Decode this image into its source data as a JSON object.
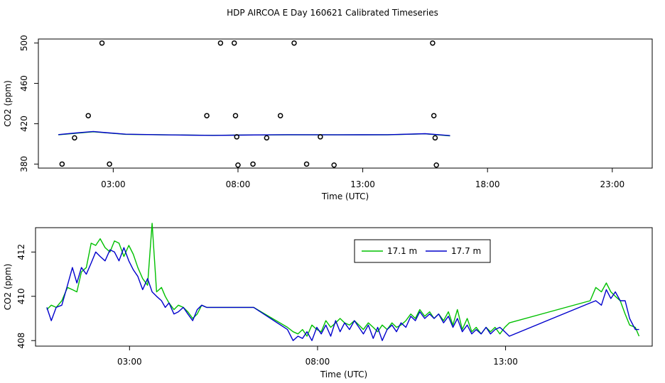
{
  "title": "HDP AIRCOA E  Day 160621  Calibrated Timeseries",
  "colors": {
    "green": "#00c000",
    "blue": "#0000cc",
    "black": "#000000"
  },
  "chart_data": [
    {
      "type": "scatter",
      "xlabel": "Time (UTC)",
      "ylabel": "CO2 (ppm)",
      "xlim": [
        0.0,
        24.6
      ],
      "ylim": [
        376,
        504
      ],
      "xticks": [
        3,
        8,
        13,
        18,
        23
      ],
      "xticklabels": [
        "03:00",
        "08:00",
        "13:00",
        "18:00",
        "23:00"
      ],
      "yticks": [
        380,
        420,
        460,
        500
      ],
      "yticklabels": [
        "380",
        "420",
        "460",
        "500"
      ],
      "points": [
        {
          "x": 0.95,
          "y": 380
        },
        {
          "x": 1.45,
          "y": 406
        },
        {
          "x": 2.0,
          "y": 428
        },
        {
          "x": 2.55,
          "y": 500
        },
        {
          "x": 2.85,
          "y": 380
        },
        {
          "x": 6.75,
          "y": 428
        },
        {
          "x": 7.3,
          "y": 500
        },
        {
          "x": 7.85,
          "y": 500
        },
        {
          "x": 7.9,
          "y": 428
        },
        {
          "x": 7.95,
          "y": 407
        },
        {
          "x": 8.0,
          "y": 379
        },
        {
          "x": 8.6,
          "y": 380
        },
        {
          "x": 9.15,
          "y": 406
        },
        {
          "x": 9.7,
          "y": 428
        },
        {
          "x": 10.25,
          "y": 500
        },
        {
          "x": 10.75,
          "y": 380
        },
        {
          "x": 11.3,
          "y": 407
        },
        {
          "x": 11.85,
          "y": 379
        },
        {
          "x": 15.8,
          "y": 500
        },
        {
          "x": 15.85,
          "y": 428
        },
        {
          "x": 15.9,
          "y": 406
        },
        {
          "x": 15.95,
          "y": 379
        }
      ],
      "series": [
        {
          "color": "green",
          "x": [
            0.8,
            1.5,
            2.2,
            2.7,
            3.5,
            5,
            7,
            8,
            10,
            12,
            14,
            15.5,
            16.5
          ],
          "y": [
            409,
            410.5,
            412,
            411,
            409.5,
            409,
            408.5,
            408.8,
            409,
            409,
            409,
            410,
            408
          ]
        },
        {
          "color": "blue",
          "x": [
            0.8,
            1.5,
            2.2,
            2.7,
            3.5,
            5,
            7,
            8,
            10,
            12,
            14,
            15.5,
            16.5
          ],
          "y": [
            409.2,
            410.8,
            412.3,
            411.2,
            409.6,
            409,
            408.4,
            408.7,
            409.1,
            409,
            409.1,
            410.1,
            408.2
          ]
        }
      ]
    },
    {
      "type": "line",
      "xlabel": "Time (UTC)",
      "ylabel": "CO2 (ppm)",
      "xlim": [
        0.5,
        16.9
      ],
      "ylim": [
        407.75,
        413.1
      ],
      "xticks": [
        3,
        8,
        13
      ],
      "xticklabels": [
        "03:00",
        "08:00",
        "13:00"
      ],
      "yticks": [
        408,
        410,
        412
      ],
      "yticklabels": [
        "408",
        "410",
        "412"
      ],
      "legend": {
        "placement": "top-right",
        "labels": [
          "17.1 m",
          "17.7 m"
        ]
      },
      "series": [
        {
          "name": "17.1 m",
          "color": "green",
          "x": [
            0.8,
            0.92,
            1.05,
            1.2,
            1.35,
            1.48,
            1.6,
            1.72,
            1.85,
            1.98,
            2.1,
            2.22,
            2.35,
            2.48,
            2.6,
            2.72,
            2.85,
            2.98,
            3.1,
            3.22,
            3.35,
            3.48,
            3.6,
            3.72,
            3.85,
            3.95,
            4.05,
            4.18,
            4.3,
            4.43,
            4.55,
            4.68,
            4.8,
            4.92,
            5.05,
            5.18,
            5.3,
            5.43,
            5.55,
            5.68,
            5.8,
            5.93,
            6.05,
            6.18,
            6.3,
            7.2,
            7.35,
            7.48,
            7.6,
            7.72,
            7.85,
            7.98,
            8.1,
            8.22,
            8.35,
            8.48,
            8.6,
            8.72,
            8.85,
            8.98,
            9.1,
            9.22,
            9.35,
            9.48,
            9.6,
            9.72,
            9.85,
            9.98,
            10.1,
            10.22,
            10.35,
            10.48,
            10.6,
            10.72,
            10.85,
            10.98,
            11.1,
            11.22,
            11.35,
            11.48,
            11.6,
            11.72,
            11.85,
            11.98,
            12.1,
            12.22,
            12.35,
            12.48,
            12.6,
            12.72,
            12.85,
            12.98,
            13.1,
            15.25,
            15.4,
            15.55,
            15.68,
            15.8,
            15.92,
            16.05,
            16.18,
            16.3,
            16.45,
            16.55
          ],
          "y": [
            409.4,
            409.6,
            409.5,
            409.8,
            410.4,
            410.3,
            410.2,
            411.1,
            411.3,
            412.4,
            412.3,
            412.6,
            412.2,
            412.0,
            412.5,
            412.4,
            411.8,
            412.3,
            411.9,
            411.3,
            410.8,
            410.5,
            413.3,
            410.2,
            410.4,
            410.0,
            409.7,
            409.4,
            409.6,
            409.5,
            409.3,
            409.0,
            409.2,
            409.6,
            409.5,
            409.5,
            409.5,
            409.5,
            409.5,
            409.5,
            409.5,
            409.5,
            409.5,
            409.5,
            409.5,
            408.6,
            408.4,
            408.3,
            408.5,
            408.2,
            408.7,
            408.5,
            408.4,
            408.9,
            408.6,
            408.8,
            409.0,
            408.8,
            408.7,
            408.9,
            408.7,
            408.5,
            408.8,
            408.6,
            408.4,
            408.7,
            408.5,
            408.8,
            408.6,
            408.7,
            408.9,
            409.2,
            409.0,
            409.4,
            409.1,
            409.3,
            409.0,
            409.2,
            408.9,
            409.3,
            408.7,
            409.4,
            408.5,
            409.0,
            408.4,
            408.6,
            408.3,
            408.6,
            408.4,
            408.6,
            408.3,
            408.6,
            408.8,
            409.8,
            410.4,
            410.2,
            410.6,
            410.2,
            410.0,
            409.8,
            409.2,
            408.7,
            408.6,
            408.2
          ]
        },
        {
          "name": "17.7 m",
          "color": "blue",
          "x": [
            0.8,
            0.92,
            1.05,
            1.2,
            1.35,
            1.48,
            1.6,
            1.72,
            1.85,
            1.98,
            2.1,
            2.22,
            2.35,
            2.48,
            2.6,
            2.72,
            2.85,
            2.98,
            3.1,
            3.22,
            3.35,
            3.48,
            3.6,
            3.72,
            3.85,
            3.95,
            4.05,
            4.18,
            4.3,
            4.43,
            4.55,
            4.68,
            4.8,
            4.92,
            5.05,
            5.18,
            5.3,
            5.43,
            5.55,
            5.68,
            5.8,
            5.93,
            6.05,
            6.18,
            6.3,
            7.2,
            7.35,
            7.48,
            7.6,
            7.72,
            7.85,
            7.98,
            8.1,
            8.22,
            8.35,
            8.48,
            8.6,
            8.72,
            8.85,
            8.98,
            9.1,
            9.22,
            9.35,
            9.48,
            9.6,
            9.72,
            9.85,
            9.98,
            10.1,
            10.22,
            10.35,
            10.48,
            10.6,
            10.72,
            10.85,
            10.98,
            11.1,
            11.22,
            11.35,
            11.48,
            11.6,
            11.72,
            11.85,
            11.98,
            12.1,
            12.22,
            12.35,
            12.48,
            12.6,
            12.72,
            12.85,
            12.98,
            13.1,
            15.25,
            15.4,
            15.55,
            15.68,
            15.8,
            15.92,
            16.05,
            16.18,
            16.3,
            16.45,
            16.55
          ],
          "y": [
            409.5,
            408.9,
            409.5,
            409.6,
            410.5,
            411.3,
            410.6,
            411.3,
            411.0,
            411.5,
            412.0,
            411.8,
            411.6,
            412.1,
            412.0,
            411.6,
            412.2,
            411.6,
            411.2,
            410.9,
            410.3,
            410.8,
            410.2,
            410.0,
            409.8,
            409.5,
            409.7,
            409.2,
            409.3,
            409.5,
            409.2,
            408.9,
            409.4,
            409.6,
            409.5,
            409.5,
            409.5,
            409.5,
            409.5,
            409.5,
            409.5,
            409.5,
            409.5,
            409.5,
            409.5,
            408.5,
            408.0,
            408.2,
            408.1,
            408.4,
            408.0,
            408.6,
            408.3,
            408.7,
            408.2,
            408.9,
            408.4,
            408.8,
            408.5,
            408.9,
            408.6,
            408.3,
            408.7,
            408.1,
            408.6,
            408.0,
            408.5,
            408.7,
            408.4,
            408.8,
            408.6,
            409.1,
            408.9,
            409.3,
            409.0,
            409.2,
            409.0,
            409.2,
            408.8,
            409.1,
            408.6,
            409.0,
            408.4,
            408.7,
            408.3,
            408.5,
            408.3,
            408.6,
            408.3,
            408.5,
            408.6,
            408.4,
            408.2,
            409.7,
            409.8,
            409.6,
            410.3,
            409.9,
            410.2,
            409.8,
            409.8,
            409.0,
            408.5,
            408.5
          ]
        }
      ]
    }
  ]
}
